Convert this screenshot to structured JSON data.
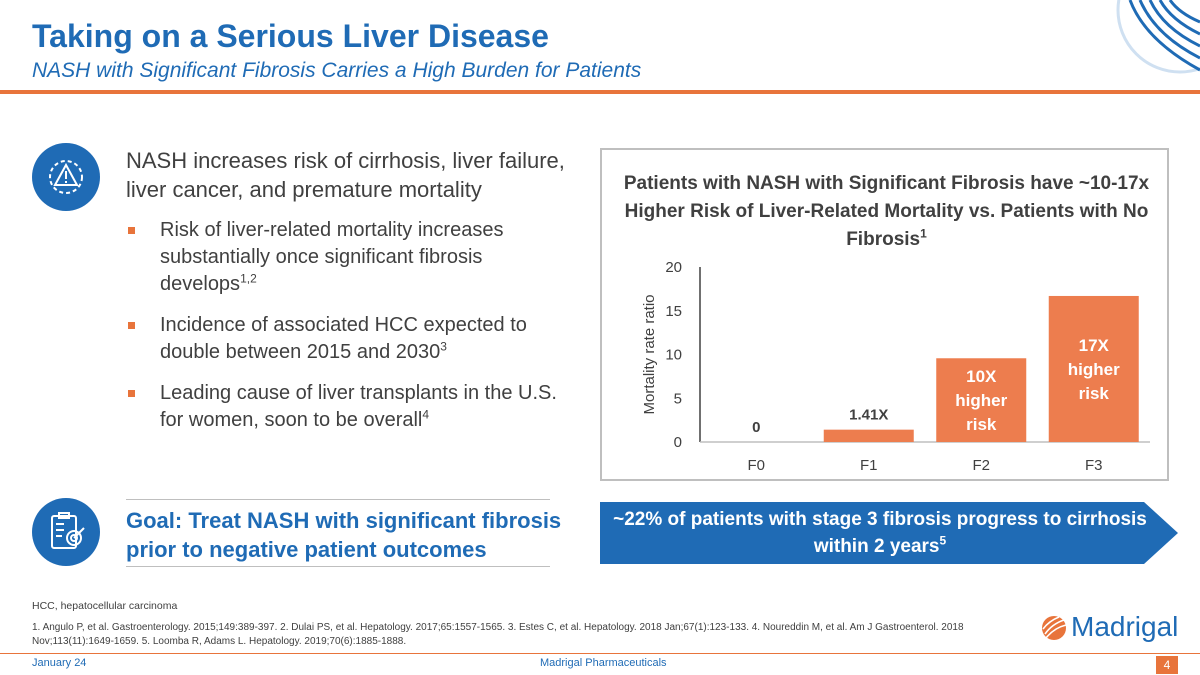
{
  "header": {
    "title": "Taking on a Serious Liver Disease",
    "subtitle": "NASH with Significant Fibrosis Carries a High Burden for Patients"
  },
  "main": {
    "lead": "NASH increases risk of cirrhosis, liver failure, liver cancer, and premature mortality",
    "bullets": [
      {
        "text": "Risk of liver-related mortality increases substantially once significant fibrosis develops",
        "sup": "1,2"
      },
      {
        "text": "Incidence of associated HCC expected to double between 2015 and 2030",
        "sup": "3"
      },
      {
        "text": "Leading cause of liver transplants in the U.S. for women, soon to be overall",
        "sup": "4"
      }
    ],
    "goal": "Goal: Treat NASH with significant fibrosis prior to negative patient outcomes"
  },
  "icons": {
    "top": "warning-gear-icon",
    "bottom": "clipboard-target-icon",
    "corner": "globe-logo-icon"
  },
  "chart_data": {
    "type": "bar",
    "title": "Patients with NASH with Significant Fibrosis have ~10-17x Higher Risk of Liver-Related Mortality vs. Patients with No Fibrosis",
    "title_sup": "1",
    "categories": [
      "F0",
      "F1",
      "F2",
      "F3"
    ],
    "values": [
      0,
      1.41,
      9.57,
      16.69
    ],
    "bar_labels": [
      "0",
      "1.41X",
      "10X higher risk",
      "17X higher risk"
    ],
    "ylabel": "Mortality rate ratio",
    "xlabel": "",
    "ylim": [
      0,
      20
    ],
    "yticks": [
      0,
      5,
      10,
      15,
      20
    ],
    "bar_color": "#ED7D4E"
  },
  "banner": {
    "text": "~22% of patients with stage 3 fibrosis progress to cirrhosis within 2 years",
    "sup": "5"
  },
  "footnotes": {
    "abbrev": "HCC, hepatocellular carcinoma",
    "references": "1. Angulo P, et al. Gastroenterology. 2015;149:389-397.  2. Dulai PS, et al. Hepatology. 2017;65:1557-1565.  3. Estes C, et al. Hepatology. 2018 Jan;67(1):123-133.  4. Noureddin M, et al. Am J Gastroenterol. 2018 Nov;113(11):1649-1659. 5. Loomba R, Adams L. Hepatology. 2019;70(6):1885-1888."
  },
  "footer": {
    "date": "January 24",
    "company": "Madrigal Pharmaceuticals",
    "page": "4",
    "brand": "Madrigal"
  },
  "colors": {
    "primary": "#1F6BB5",
    "accent": "#E8743B"
  }
}
